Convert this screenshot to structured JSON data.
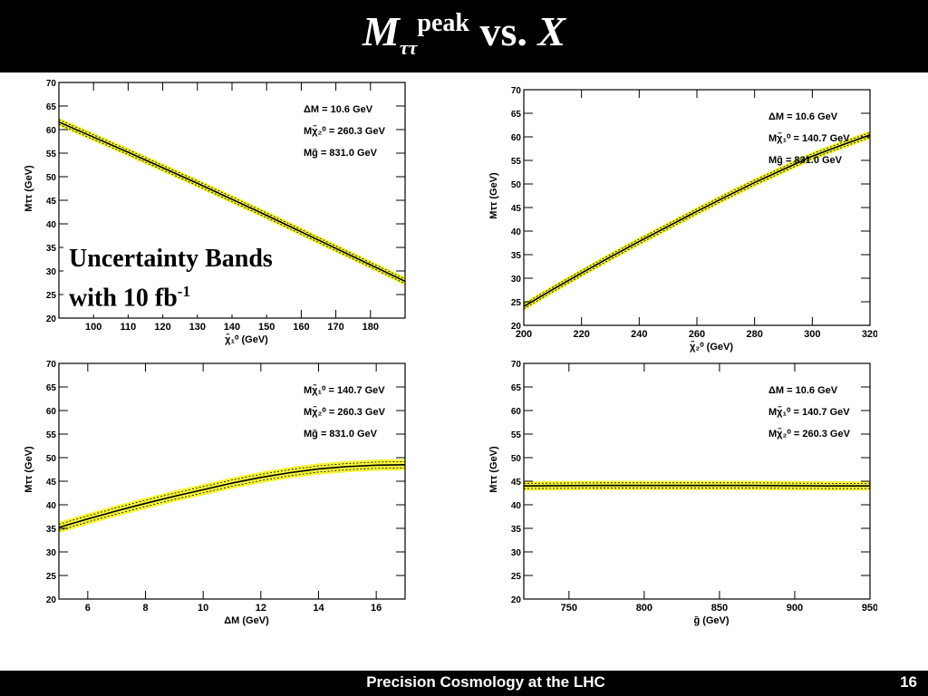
{
  "slide": {
    "title_main": "M",
    "title_sub": "ττ",
    "title_sup": "peak",
    "title_rest": " vs. ",
    "title_x": "X",
    "annotation_line1": "Uncertainty Bands",
    "annotation_line2": "with 10 fb",
    "annotation_sup": "-1",
    "footer": "Precision Cosmology at the LHC",
    "page_number": "16"
  },
  "colors": {
    "band": "#f5f53c",
    "curve": "#000000",
    "frame": "#000000",
    "background": "#ffffff"
  },
  "chart_data": [
    {
      "type": "line",
      "xlabel": "χ̃₁⁰ (GeV)",
      "ylabel": "Mττ (GeV)",
      "xlim": [
        90,
        190
      ],
      "ylim": [
        20,
        70
      ],
      "xticks": [
        100,
        110,
        120,
        130,
        140,
        150,
        160,
        170,
        180
      ],
      "yticks": [
        20,
        25,
        30,
        35,
        40,
        45,
        50,
        55,
        60,
        65,
        70
      ],
      "legend": [
        "ΔM = 10.6 GeV",
        "Mχ̃₂⁰ = 260.3 GeV",
        "Mg̃ = 831.0 GeV"
      ],
      "x": [
        90,
        100,
        110,
        120,
        130,
        140,
        150,
        160,
        170,
        180,
        190
      ],
      "y": [
        61.6,
        58.4,
        55.2,
        51.9,
        48.6,
        45.2,
        41.8,
        38.3,
        34.8,
        31.3,
        27.8
      ],
      "band_halfwidth": 0.9
    },
    {
      "type": "line",
      "xlabel": "χ̃₂⁰ (GeV)",
      "ylabel": "Mττ (GeV)",
      "xlim": [
        200,
        320
      ],
      "ylim": [
        20,
        70
      ],
      "xticks": [
        200,
        220,
        240,
        260,
        280,
        300,
        320
      ],
      "yticks": [
        20,
        25,
        30,
        35,
        40,
        45,
        50,
        55,
        60,
        65,
        70
      ],
      "legend": [
        "ΔM = 10.6 GeV",
        "Mχ̃₁⁰ = 140.7 GeV",
        "Mg̃ = 831.0 GeV"
      ],
      "x": [
        200,
        210,
        220,
        230,
        240,
        250,
        260,
        270,
        280,
        290,
        300,
        310,
        320
      ],
      "y": [
        24.0,
        27.6,
        31.1,
        34.5,
        37.8,
        41.0,
        44.2,
        47.3,
        50.3,
        53.1,
        55.9,
        58.2,
        60.4
      ],
      "band_halfwidth": 0.9
    },
    {
      "type": "line",
      "xlabel": "ΔM (GeV)",
      "ylabel": "Mττ (GeV)",
      "xlim": [
        5,
        17
      ],
      "ylim": [
        20,
        70
      ],
      "xticks": [
        6,
        8,
        10,
        12,
        14,
        16
      ],
      "yticks": [
        20,
        25,
        30,
        35,
        40,
        45,
        50,
        55,
        60,
        65,
        70
      ],
      "legend": [
        "Mχ̃₁⁰ = 140.7 GeV",
        "Mχ̃₂⁰ = 260.3 GeV",
        "Mg̃ = 831.0 GeV"
      ],
      "x": [
        5,
        6,
        7,
        8,
        9,
        10,
        11,
        12,
        13,
        14,
        15,
        16,
        17
      ],
      "y": [
        35.2,
        37.0,
        38.7,
        40.3,
        41.8,
        43.2,
        44.6,
        45.8,
        46.8,
        47.6,
        48.1,
        48.4,
        48.5
      ],
      "band_halfwidth": 1.2
    },
    {
      "type": "line",
      "xlabel": "g̃ (GeV)",
      "ylabel": "Mττ (GeV)",
      "xlim": [
        720,
        950
      ],
      "ylim": [
        20,
        70
      ],
      "xticks": [
        750,
        800,
        850,
        900,
        950
      ],
      "yticks": [
        20,
        25,
        30,
        35,
        40,
        45,
        50,
        55,
        60,
        65,
        70
      ],
      "legend": [
        "ΔM = 10.6 GeV",
        "Mχ̃₁⁰ = 140.7 GeV",
        "Mχ̃₂⁰ = 260.3 GeV"
      ],
      "x": [
        720,
        770,
        820,
        870,
        920,
        950
      ],
      "y": [
        44.0,
        44.1,
        44.1,
        44.1,
        44.0,
        44.0
      ],
      "band_halfwidth": 1.0
    }
  ]
}
